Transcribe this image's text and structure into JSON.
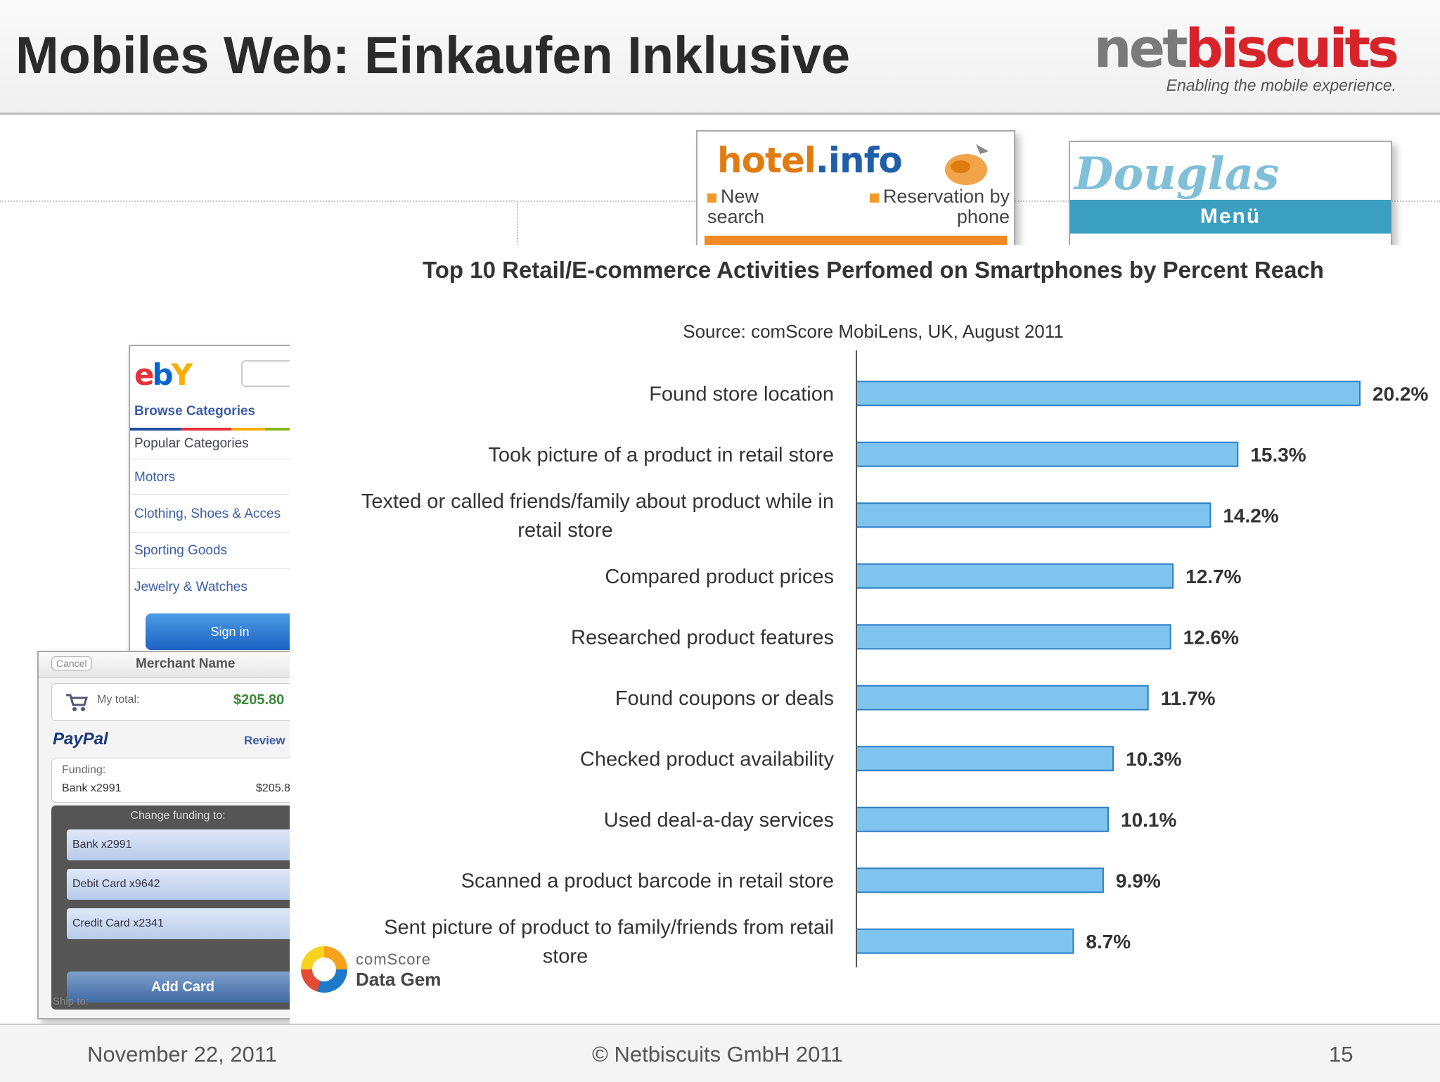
{
  "slide": {
    "title": "Mobiles Web: Einkaufen Inklusive"
  },
  "logo": {
    "part1": "net",
    "part2": "biscuits",
    "tagline": "Enabling the mobile experience."
  },
  "hotel_shot": {
    "logo_part1": "hotel",
    "logo_part2": ".info",
    "left_link_line1": "New",
    "left_link_line2": "search",
    "right_link_line1": "Reservation by",
    "right_link_line2": "phone"
  },
  "douglas_shot": {
    "logo": "Douglas",
    "menu": "Menü"
  },
  "ebay_shot": {
    "browse": "Browse Categories",
    "popular": "Popular Categories",
    "items": [
      "Motors",
      "Clothing, Shoes & Acces",
      "Sporting Goods",
      "Jewelry & Watches"
    ],
    "sign_in": "Sign in"
  },
  "paypal_shot": {
    "cancel": "Cancel",
    "merchant": "Merchant Name",
    "total_label": "My total:",
    "total_value": "$205.80",
    "logo": "PayPal",
    "review": "Review",
    "funding_label": "Funding:",
    "funding_source": "Bank x2991",
    "funding_amount": "$205.8",
    "change_funding": "Change funding to:",
    "options": [
      "Bank x2991",
      "Debit Card x9642",
      "Credit Card x2341"
    ],
    "add_card": "Add Card",
    "ship_to": "Ship to:"
  },
  "comscore": {
    "name": "comScore",
    "product": "Data Gem"
  },
  "chart_data": {
    "type": "bar",
    "orientation": "horizontal",
    "title": "Top 10 Retail/E-commerce Activities Perfomed on Smartphones by Percent Reach",
    "subtitle": "Source: comScore MobiLens, UK, August 2011",
    "categories": [
      [
        "Found store location"
      ],
      [
        "Took picture of a product in retail store"
      ],
      [
        "Texted or called friends/family about product while in",
        "retail store"
      ],
      [
        "Compared product prices"
      ],
      [
        "Researched product features"
      ],
      [
        "Found coupons or deals"
      ],
      [
        "Checked product availability"
      ],
      [
        "Used deal-a-day services"
      ],
      [
        "Scanned a product barcode in retail store"
      ],
      [
        "Sent picture of product to family/friends from retail",
        "store"
      ]
    ],
    "values": [
      20.2,
      15.3,
      14.2,
      12.7,
      12.6,
      11.7,
      10.3,
      10.1,
      9.9,
      8.7
    ],
    "value_labels": [
      "20.2%",
      "15.3%",
      "14.2%",
      "12.7%",
      "12.6%",
      "11.7%",
      "10.3%",
      "10.1%",
      "9.9%",
      "8.7%"
    ],
    "xlim": [
      0,
      20.2
    ],
    "bar_color": "#7fc4ef",
    "bar_edge": "#2c7fc4",
    "grid": false,
    "legend": false
  },
  "footer": {
    "date": "November 22, 2011",
    "copyright": "© Netbiscuits GmbH 2011",
    "page": "15"
  }
}
